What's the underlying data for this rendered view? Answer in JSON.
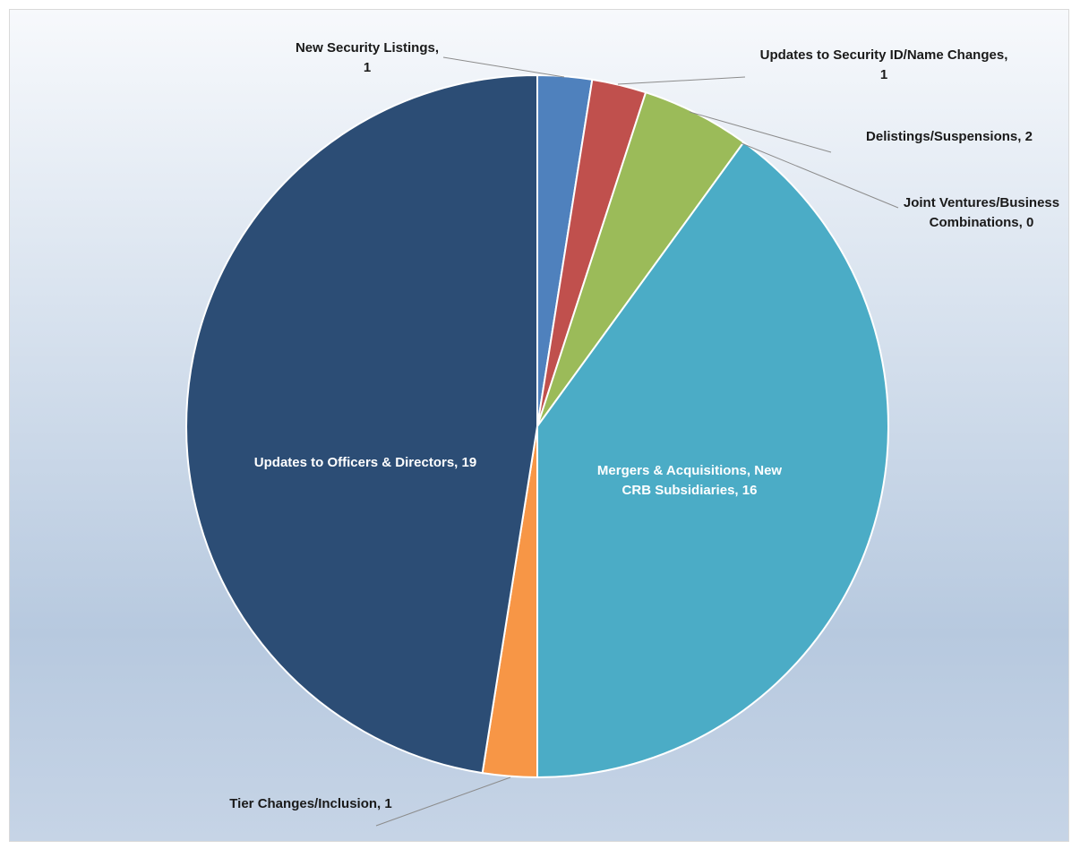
{
  "chart_data": {
    "type": "pie",
    "title": "",
    "slices": [
      {
        "label_lines": [
          "New Security Listings,",
          "1"
        ],
        "value": 1,
        "color": "#4F81BD",
        "label_color": "#1a1a1a"
      },
      {
        "label_lines": [
          "Updates to Security ID/Name Changes,",
          "1"
        ],
        "value": 1,
        "color": "#C0504D",
        "label_color": "#1a1a1a"
      },
      {
        "label_lines": [
          "Delistings/Suspensions, 2"
        ],
        "value": 2,
        "color": "#9BBB59",
        "label_color": "#1a1a1a"
      },
      {
        "label_lines": [
          "Joint Ventures/Business",
          "Combinations, 0"
        ],
        "value": 0,
        "color": "#8064A2",
        "label_color": "#1a1a1a"
      },
      {
        "label_lines": [
          "Mergers & Acquisitions, New",
          "CRB Subsidiaries, 16"
        ],
        "value": 16,
        "color": "#4BACC6",
        "label_color": "#ffffff"
      },
      {
        "label_lines": [
          "Tier Changes/Inclusion, 1"
        ],
        "value": 1,
        "color": "#F79646",
        "label_color": "#1a1a1a"
      },
      {
        "label_lines": [
          "Updates to Officers & Directors, 19"
        ],
        "value": 19,
        "color": "#2C4D75",
        "label_color": "#ffffff"
      }
    ],
    "start_angle_deg": 0,
    "direction": "clockwise",
    "legend": "none",
    "data_labels": "category name and value"
  }
}
